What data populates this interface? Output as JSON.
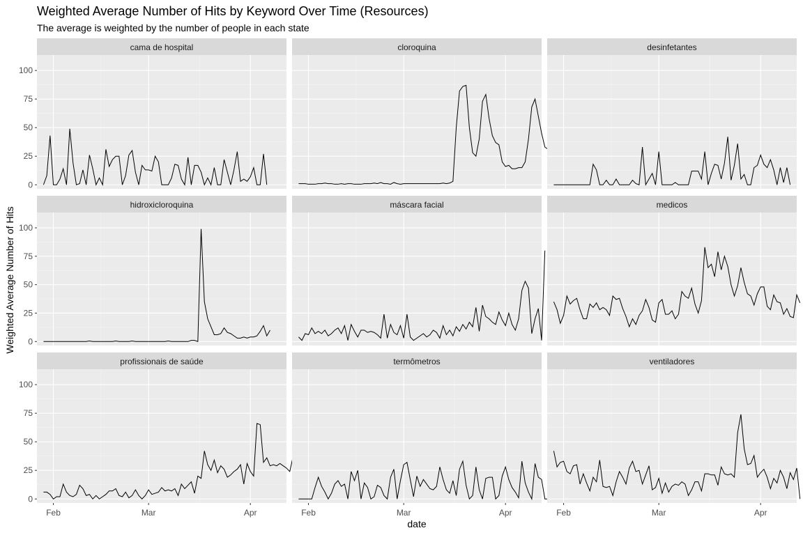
{
  "title": "Weighted Average Number of Hits by Keyword Over Time (Resources)",
  "subtitle": "The average is weighted by the number of people in each state",
  "chart_data": {
    "type": "line",
    "facets": "3x3",
    "xlabel": "date",
    "ylabel": "Weighted Average Number of Hits",
    "x_ticks": [
      {
        "label": "Feb",
        "day": 3
      },
      {
        "label": "Mar",
        "day": 32
      },
      {
        "label": "Apr",
        "day": 63
      }
    ],
    "y_ticks": [
      0,
      25,
      50,
      75,
      100
    ],
    "xlim_days": [
      -2,
      74
    ],
    "ylim": [
      -3.5,
      113.5
    ],
    "x_start_date": "2020-01-29",
    "grid": true,
    "line_color": "#000000",
    "panel_color": "#ebebeb",
    "strip_color": "#d9d9d9",
    "panels": [
      {
        "name": "cama de hospital",
        "values": [
          0,
          8,
          43,
          0,
          0,
          5,
          14,
          0,
          49,
          19,
          0,
          1,
          13,
          0,
          26,
          14,
          0,
          6,
          0,
          31,
          16,
          22,
          25,
          25,
          0,
          8,
          26,
          30,
          11,
          0,
          17,
          13,
          13,
          12,
          25,
          20,
          0,
          0,
          0,
          6,
          18,
          17,
          5,
          0,
          24,
          0,
          17,
          17,
          11,
          0,
          6,
          0,
          15,
          0,
          0,
          22,
          11,
          0,
          13,
          29,
          3,
          5,
          3,
          7,
          15,
          0,
          0,
          27,
          0
        ]
      },
      {
        "name": "cloroquina",
        "values": [
          1,
          1,
          1,
          0.5,
          0.5,
          0.5,
          1,
          1,
          1.5,
          1,
          1,
          0.5,
          0.5,
          1,
          0.5,
          1,
          1,
          0.5,
          0.5,
          0.5,
          1,
          1,
          1,
          1.5,
          1,
          2,
          1,
          1,
          0.5,
          2,
          1,
          0.5,
          1,
          1,
          1,
          1,
          1,
          1,
          1,
          1,
          1,
          1,
          1,
          1,
          1.5,
          1,
          1.5,
          3,
          50,
          82,
          86,
          87,
          50,
          28,
          25,
          40,
          73,
          79,
          58,
          43,
          37,
          35,
          20,
          16,
          17,
          14,
          14,
          15,
          15,
          20,
          40,
          68,
          75,
          60,
          45,
          33,
          31,
          34
        ]
      },
      {
        "name": "desinfetantes",
        "values": [
          0,
          0,
          0,
          0,
          0,
          0,
          0,
          0,
          0,
          0,
          0,
          0,
          18,
          13,
          0,
          0,
          4,
          0,
          0,
          5,
          0,
          0,
          0,
          0,
          4,
          1,
          0,
          33,
          0,
          5,
          10,
          0,
          29,
          0,
          0,
          0,
          0,
          2,
          0,
          0,
          0,
          0,
          12,
          12,
          12,
          5,
          29,
          0,
          10,
          18,
          17,
          5,
          19,
          42,
          4,
          17,
          36,
          5,
          9,
          0,
          0,
          15,
          17,
          26,
          18,
          15,
          22,
          13,
          0,
          15,
          2,
          15,
          0
        ]
      },
      {
        "name": "hidroxicloroquina",
        "values": [
          0,
          0,
          0,
          0,
          0,
          0,
          0,
          0,
          0,
          0,
          0,
          0,
          0,
          0,
          0.5,
          0,
          0,
          0,
          0,
          0,
          0,
          0,
          0.5,
          0,
          0,
          0,
          0,
          0.5,
          0,
          0,
          0,
          0,
          0,
          0,
          0,
          0,
          0,
          0,
          0.5,
          0,
          0,
          0,
          0,
          0,
          0,
          1,
          1,
          0,
          99,
          35,
          20,
          13,
          6,
          6,
          7,
          12,
          8,
          7,
          5,
          3,
          3,
          4,
          3,
          4,
          4,
          5,
          9,
          14,
          5,
          10
        ]
      },
      {
        "name": "máscara facial",
        "values": [
          4,
          1,
          7,
          6,
          12,
          7,
          9,
          7,
          10,
          5,
          7,
          10,
          12,
          7,
          14,
          1,
          15,
          9,
          4,
          10,
          10,
          8,
          9,
          8,
          6,
          3,
          24,
          3,
          15,
          8,
          6,
          14,
          3,
          24,
          4,
          1,
          3,
          5,
          7,
          4,
          6,
          10,
          8,
          3,
          14,
          6,
          10,
          5,
          13,
          9,
          15,
          11,
          17,
          13,
          30,
          9,
          32,
          22,
          20,
          17,
          15,
          26,
          19,
          14,
          25,
          15,
          10,
          20,
          45,
          53,
          47,
          7,
          20,
          29,
          1,
          80
        ]
      },
      {
        "name": "medicos",
        "values": [
          35,
          28,
          16,
          23,
          40,
          33,
          36,
          38,
          28,
          20,
          20,
          33,
          30,
          34,
          28,
          30,
          28,
          23,
          40,
          37,
          38,
          29,
          22,
          13,
          20,
          15,
          23,
          27,
          37,
          30,
          19,
          17,
          34,
          37,
          24,
          24,
          27,
          20,
          24,
          44,
          40,
          38,
          47,
          33,
          25,
          36,
          83,
          65,
          68,
          57,
          79,
          63,
          75,
          66,
          50,
          40,
          49,
          65,
          52,
          42,
          40,
          32,
          42,
          48,
          48,
          31,
          28,
          41,
          35,
          34,
          24,
          29,
          22,
          21,
          41,
          34
        ]
      },
      {
        "name": "profissionais de saúde",
        "values": [
          6,
          6,
          4,
          0,
          2,
          2,
          13,
          6,
          3,
          2,
          4,
          12,
          9,
          3,
          4,
          0,
          3,
          0,
          2,
          4,
          7,
          7,
          9,
          3,
          2,
          6,
          1,
          3,
          8,
          3,
          0,
          3,
          8,
          4,
          5,
          6,
          10,
          7,
          8,
          7,
          9,
          3,
          13,
          9,
          12,
          15,
          5,
          20,
          18,
          42,
          30,
          25,
          34,
          23,
          29,
          26,
          19,
          21,
          24,
          26,
          30,
          13,
          31,
          24,
          20,
          66,
          65,
          32,
          36,
          29,
          30,
          29,
          31,
          29,
          27,
          24,
          37,
          25
        ]
      },
      {
        "name": "termômetros",
        "values": [
          0,
          0,
          0,
          0,
          0,
          10,
          19,
          11,
          6,
          0,
          5,
          13,
          16,
          11,
          13,
          0,
          24,
          16,
          25,
          0,
          14,
          10,
          0,
          2,
          12,
          10,
          3,
          0,
          19,
          26,
          0,
          16,
          30,
          32,
          17,
          2,
          20,
          11,
          17,
          13,
          9,
          8,
          11,
          28,
          17,
          8,
          5,
          16,
          3,
          26,
          33,
          12,
          0,
          3,
          28,
          8,
          0,
          18,
          19,
          19,
          0,
          3,
          20,
          28,
          17,
          10,
          6,
          1,
          33,
          14,
          6,
          0,
          31,
          19,
          17,
          0,
          0
        ]
      },
      {
        "name": "ventiladores",
        "values": [
          42,
          28,
          32,
          33,
          24,
          22,
          29,
          30,
          13,
          22,
          14,
          7,
          19,
          15,
          34,
          11,
          10,
          11,
          3,
          15,
          24,
          19,
          13,
          27,
          33,
          24,
          25,
          13,
          21,
          29,
          8,
          10,
          18,
          5,
          14,
          6,
          11,
          13,
          12,
          15,
          13,
          3,
          8,
          15,
          15,
          7,
          22,
          22,
          21,
          21,
          12,
          28,
          22,
          21,
          22,
          19,
          58,
          74,
          44,
          30,
          31,
          38,
          19,
          23,
          26,
          19,
          9,
          18,
          14,
          25,
          19,
          9,
          23,
          17,
          27,
          0
        ]
      }
    ]
  }
}
